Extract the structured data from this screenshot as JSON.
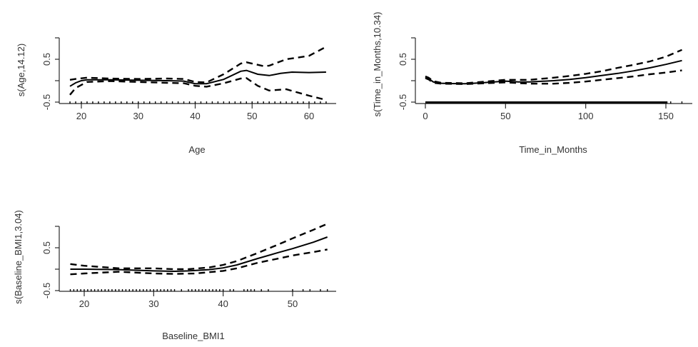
{
  "chart_data": [
    {
      "type": "line",
      "title": "",
      "xlabel": "Age",
      "ylabel": "s(Age,14.12)",
      "xlim": [
        18,
        63
      ],
      "ylim": [
        -0.5,
        1.0
      ],
      "xticks": [
        20,
        30,
        40,
        50,
        60
      ],
      "yticks": [
        -0.5,
        0.5
      ],
      "ytick_marks": [
        -0.5,
        0,
        0.5,
        1.0
      ],
      "grid": false,
      "legend": "none",
      "series": [
        {
          "name": "fit",
          "style": "solid",
          "x": [
            18,
            19,
            20,
            21,
            25,
            30,
            35,
            38,
            40,
            42,
            45,
            48,
            49,
            51,
            53,
            55,
            57,
            60,
            63
          ],
          "y": [
            -0.13,
            -0.05,
            0.0,
            0.02,
            0.02,
            0.01,
            0.0,
            -0.01,
            -0.07,
            -0.07,
            0.03,
            0.22,
            0.24,
            0.15,
            0.12,
            0.17,
            0.2,
            0.19,
            0.2
          ]
        },
        {
          "name": "upper CI",
          "style": "dashed",
          "x": [
            18,
            19,
            21,
            25,
            30,
            35,
            38,
            40,
            42,
            45,
            48,
            49,
            52,
            53,
            56,
            60,
            63
          ],
          "y": [
            0.02,
            0.04,
            0.07,
            0.05,
            0.04,
            0.05,
            0.04,
            -0.03,
            -0.04,
            0.15,
            0.4,
            0.43,
            0.34,
            0.35,
            0.5,
            0.58,
            0.79
          ]
        },
        {
          "name": "lower CI",
          "style": "dashed",
          "x": [
            18,
            19,
            21,
            25,
            30,
            35,
            38,
            40,
            42,
            45,
            48,
            49,
            51,
            53,
            56,
            60,
            63
          ],
          "y": [
            -0.33,
            -0.17,
            -0.03,
            -0.01,
            -0.03,
            -0.05,
            -0.06,
            -0.12,
            -0.14,
            -0.06,
            0.05,
            0.06,
            -0.12,
            -0.23,
            -0.2,
            -0.35,
            -0.45
          ]
        }
      ],
      "rug": [
        18,
        19,
        20,
        21,
        22,
        23,
        24,
        25,
        26,
        27,
        28,
        29,
        30,
        31,
        32,
        33,
        34,
        35,
        36,
        37,
        38,
        39,
        40,
        41,
        42,
        43,
        44,
        45,
        46,
        47,
        48,
        49,
        50,
        51,
        52,
        53,
        54,
        55,
        56,
        57,
        58,
        59,
        60,
        61,
        62,
        63
      ]
    },
    {
      "type": "line",
      "title": "",
      "xlabel": "Time_in_Months",
      "ylabel": "s(Time_in_Months,10.34)",
      "xlim": [
        0,
        160
      ],
      "ylim": [
        -0.5,
        1.0
      ],
      "xticks": [
        0,
        50,
        100,
        150
      ],
      "yticks": [
        -0.5,
        0.5
      ],
      "ytick_marks": [
        -0.5,
        0,
        0.5,
        1.0
      ],
      "grid": false,
      "legend": "none",
      "series": [
        {
          "name": "fit",
          "style": "solid",
          "x": [
            0,
            2,
            5,
            10,
            20,
            25,
            35,
            50,
            58,
            65,
            80,
            90,
            100,
            110,
            120,
            130,
            140,
            150,
            160
          ],
          "y": [
            0.08,
            0.05,
            -0.03,
            -0.06,
            -0.07,
            -0.07,
            -0.05,
            -0.01,
            -0.03,
            -0.03,
            0.0,
            0.03,
            0.07,
            0.12,
            0.17,
            0.23,
            0.3,
            0.38,
            0.47
          ]
        },
        {
          "name": "upper CI",
          "style": "dashed",
          "x": [
            0,
            2,
            5,
            10,
            25,
            50,
            65,
            80,
            90,
            100,
            110,
            120,
            130,
            140,
            150,
            160
          ],
          "y": [
            0.1,
            0.07,
            -0.01,
            -0.05,
            -0.06,
            0.02,
            0.02,
            0.07,
            0.11,
            0.16,
            0.22,
            0.3,
            0.37,
            0.45,
            0.56,
            0.72
          ]
        },
        {
          "name": "lower CI",
          "style": "dashed",
          "x": [
            0,
            2,
            5,
            10,
            25,
            50,
            65,
            80,
            90,
            100,
            110,
            120,
            130,
            140,
            150,
            160
          ],
          "y": [
            0.06,
            0.03,
            -0.05,
            -0.07,
            -0.08,
            -0.04,
            -0.07,
            -0.07,
            -0.05,
            -0.02,
            0.02,
            0.06,
            0.1,
            0.15,
            0.19,
            0.24
          ]
        }
      ],
      "rug_range": [
        0,
        151
      ],
      "rug_extra": [
        153,
        160
      ]
    },
    {
      "type": "line",
      "title": "",
      "xlabel": "Baseline_BMI1",
      "ylabel": "s(Baseline_BMI1,3.04)",
      "xlim": [
        18,
        55
      ],
      "ylim": [
        -0.5,
        1.0
      ],
      "xticks": [
        20,
        30,
        40,
        50
      ],
      "yticks": [
        -0.5,
        0.5
      ],
      "ytick_marks": [
        -0.5,
        0,
        0.5,
        1.0
      ],
      "grid": false,
      "legend": "none",
      "series": [
        {
          "name": "fit",
          "style": "solid",
          "x": [
            18,
            20,
            25,
            30,
            33,
            35,
            38,
            40,
            42,
            45,
            48,
            50,
            53,
            55
          ],
          "y": [
            0.0,
            0.0,
            -0.01,
            -0.04,
            -0.05,
            -0.04,
            -0.01,
            0.03,
            0.1,
            0.25,
            0.39,
            0.48,
            0.63,
            0.75
          ]
        },
        {
          "name": "upper CI",
          "style": "dashed",
          "x": [
            18,
            20,
            25,
            30,
            33,
            35,
            38,
            40,
            42,
            45,
            48,
            50,
            53,
            55
          ],
          "y": [
            0.12,
            0.08,
            0.02,
            0.02,
            0.0,
            0.0,
            0.04,
            0.1,
            0.19,
            0.38,
            0.58,
            0.72,
            0.92,
            1.06
          ]
        },
        {
          "name": "lower CI",
          "style": "dashed",
          "x": [
            18,
            20,
            25,
            30,
            33,
            36,
            38,
            40,
            42,
            45,
            48,
            50,
            53,
            55
          ],
          "y": [
            -0.12,
            -0.1,
            -0.06,
            -0.1,
            -0.11,
            -0.1,
            -0.07,
            -0.04,
            0.02,
            0.15,
            0.25,
            0.32,
            0.4,
            0.46
          ]
        }
      ],
      "rug": [
        18,
        18.5,
        19,
        19.5,
        20,
        20.5,
        21,
        21.5,
        22,
        22.5,
        23,
        23.5,
        24,
        24.5,
        25,
        25.5,
        26,
        26.5,
        27,
        27.5,
        28,
        28.5,
        29,
        29.5,
        30,
        30.5,
        31,
        31.5,
        32,
        32.5,
        33,
        34,
        35,
        35.5,
        36,
        36.5,
        37,
        37.5,
        38,
        38.5,
        39,
        39.5,
        40,
        41,
        41.5,
        43,
        43.5,
        44,
        44.5,
        45.5,
        46.5,
        50,
        51.5,
        52.5,
        54,
        55
      ]
    }
  ]
}
